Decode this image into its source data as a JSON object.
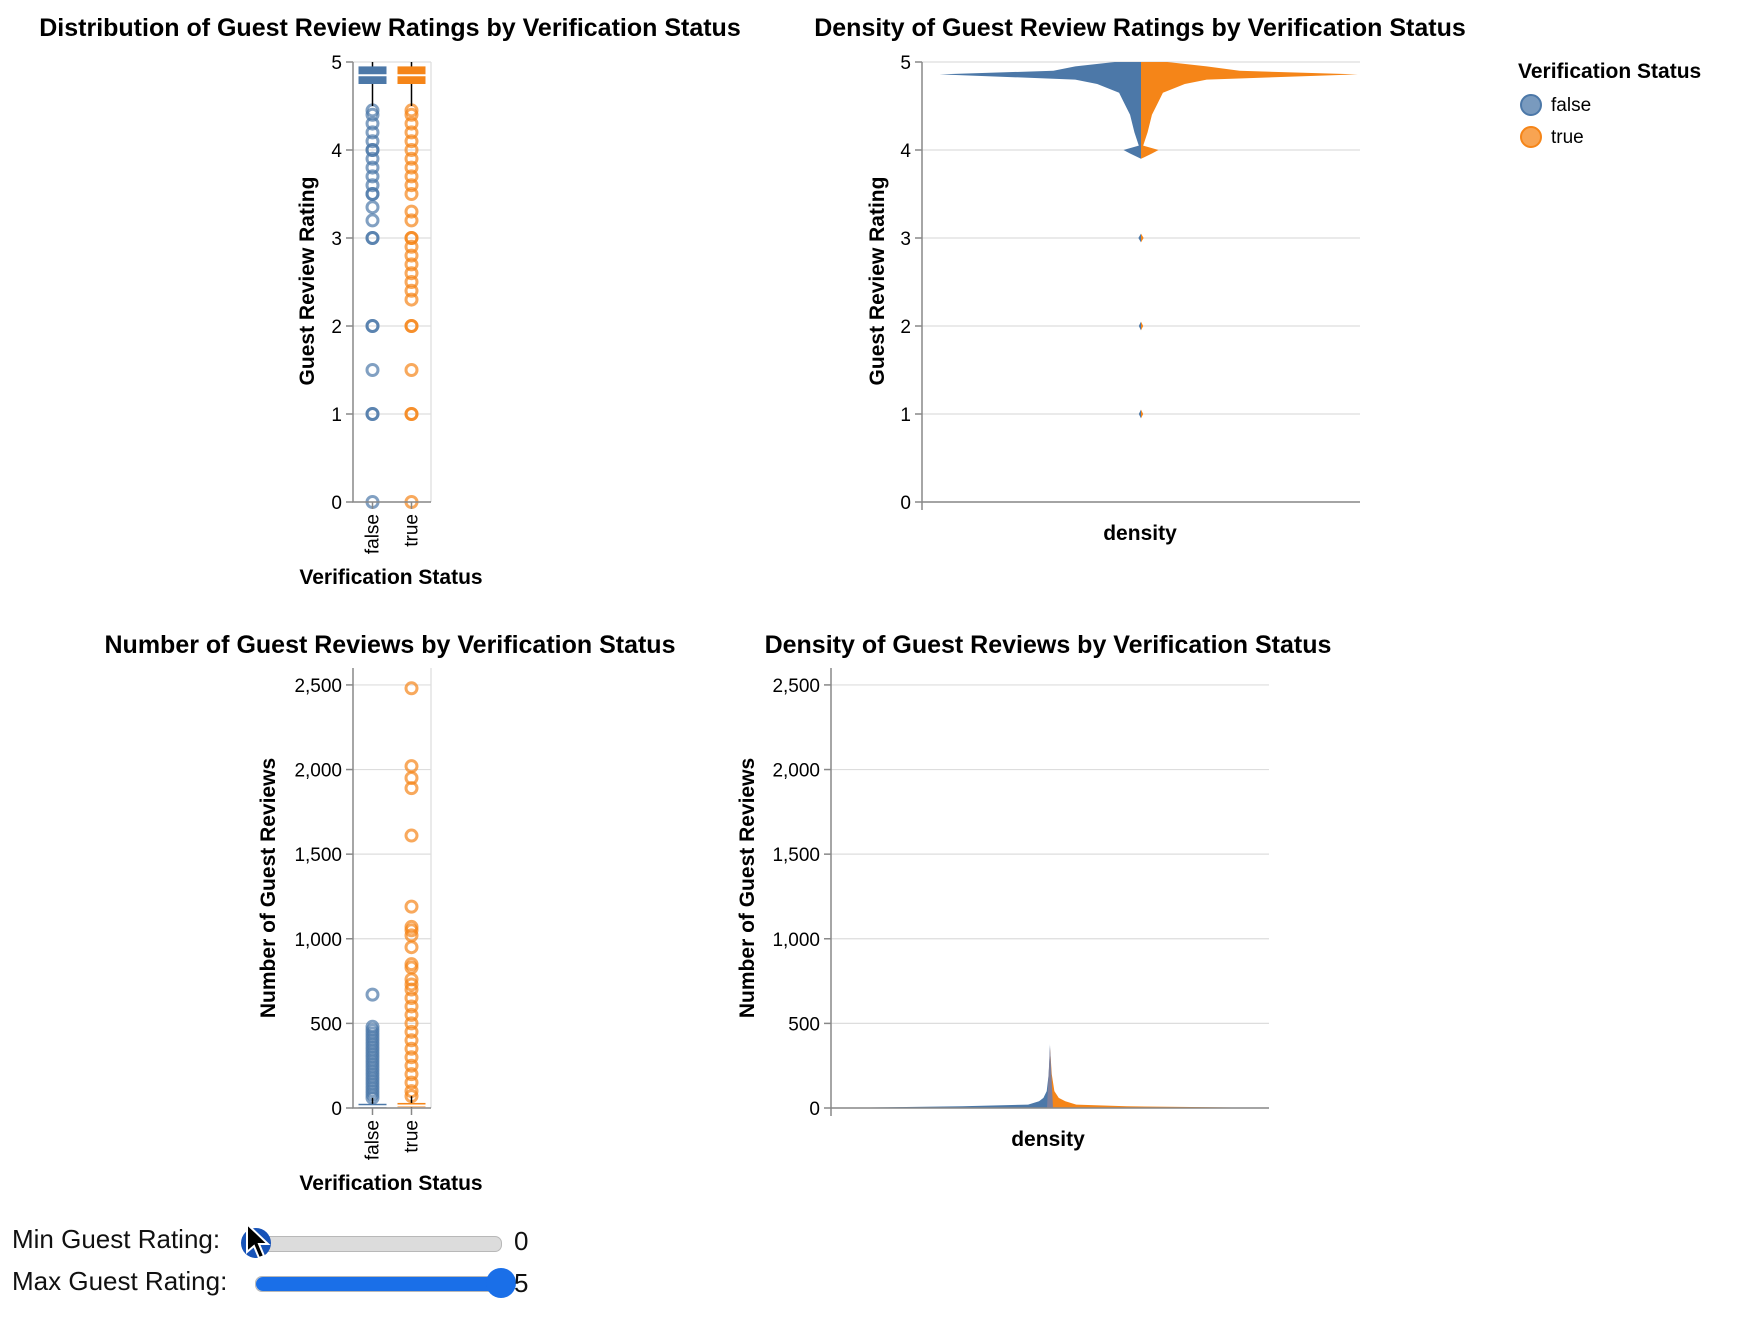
{
  "colors": {
    "false": "#4c78a8",
    "true": "#f58518"
  },
  "legend": {
    "title": "Verification Status",
    "items": [
      "false",
      "true"
    ]
  },
  "controls": {
    "min": {
      "label": "Min Guest Rating:",
      "value": "0",
      "fraction": 0.0
    },
    "max": {
      "label": "Max Guest Rating:",
      "value": "5",
      "fraction": 1.0
    }
  },
  "chart_data": [
    {
      "type": "boxplot",
      "title": "Distribution of Guest Review Ratings by Verification Status",
      "xlabel": "Verification Status",
      "ylabel": "Guest Review Rating",
      "categories": [
        "false",
        "true"
      ],
      "ylim": [
        0,
        5
      ],
      "yticks": [
        0,
        1,
        2,
        3,
        4,
        5
      ],
      "grid": true,
      "boxes": [
        {
          "name": "false",
          "q1": 4.75,
          "median": 4.85,
          "q3": 4.95,
          "whisker_low": 4.5,
          "whisker_high": 5
        },
        {
          "name": "true",
          "q1": 4.75,
          "median": 4.85,
          "q3": 4.95,
          "whisker_low": 4.5,
          "whisker_high": 5
        }
      ],
      "outliers": {
        "false": [
          0,
          1,
          1,
          1.5,
          2,
          2,
          3,
          3,
          3.2,
          3.35,
          3.5,
          3.5,
          3.6,
          3.7,
          3.8,
          3.9,
          4.0,
          4.0,
          4.1,
          4.2,
          4.3,
          4.4,
          4.45
        ],
        "true": [
          0,
          1,
          1,
          1.5,
          2,
          2,
          2.3,
          2.4,
          2.5,
          2.6,
          2.7,
          2.8,
          2.9,
          3,
          3,
          3.2,
          3.3,
          3.5,
          3.6,
          3.7,
          3.8,
          3.9,
          4.0,
          4.1,
          4.2,
          4.3,
          4.4,
          4.45
        ]
      }
    },
    {
      "type": "violin",
      "title": "Density of Guest Review Ratings by Verification Status",
      "xlabel": "density",
      "ylabel": "Guest Review Rating",
      "ylim": [
        0,
        5
      ],
      "yticks": [
        0,
        1,
        2,
        3,
        4,
        5
      ],
      "grid": true,
      "legend_position": "top-right",
      "series": [
        {
          "name": "false",
          "y": [
            0.95,
            1.0,
            1.05,
            1.95,
            2.0,
            2.05,
            2.95,
            3.0,
            3.05,
            3.9,
            3.96,
            4.0,
            4.05,
            4.2,
            4.4,
            4.55,
            4.65,
            4.75,
            4.8,
            4.86,
            4.9,
            4.95,
            5.0
          ],
          "density": [
            0,
            0.01,
            0,
            0,
            0.01,
            0,
            0,
            0.012,
            0,
            0,
            0.05,
            0.08,
            0.01,
            0.03,
            0.05,
            0.08,
            0.1,
            0.2,
            0.3,
            0.92,
            0.4,
            0.3,
            0.12
          ]
        },
        {
          "name": "true",
          "y": [
            0.95,
            1.0,
            1.05,
            1.95,
            2.0,
            2.05,
            2.95,
            3.0,
            3.05,
            3.9,
            3.96,
            4.0,
            4.05,
            4.2,
            4.4,
            4.55,
            4.65,
            4.75,
            4.8,
            4.86,
            4.9,
            4.95,
            5.0
          ],
          "density": [
            0,
            0.01,
            0,
            0,
            0.01,
            0,
            0,
            0.012,
            0,
            0,
            0.05,
            0.08,
            0.01,
            0.03,
            0.05,
            0.08,
            0.1,
            0.2,
            0.3,
            0.99,
            0.45,
            0.3,
            0.12
          ]
        }
      ]
    },
    {
      "type": "boxplot",
      "title": "Number of Guest Reviews by Verification Status",
      "xlabel": "Verification Status",
      "ylabel": "Number of Guest Reviews",
      "categories": [
        "false",
        "true"
      ],
      "ylim": [
        0,
        2600
      ],
      "yticks": [
        0,
        500,
        1000,
        1500,
        2000,
        2500
      ],
      "grid": true,
      "boxes": [
        {
          "name": "false",
          "q1": 3,
          "median": 10,
          "q3": 25,
          "whisker_low": 0,
          "whisker_high": 60
        },
        {
          "name": "true",
          "q1": 5,
          "median": 15,
          "q3": 30,
          "whisker_low": 0,
          "whisker_high": 70
        }
      ],
      "outliers": {
        "false": [
          60,
          80,
          100,
          120,
          140,
          160,
          180,
          200,
          220,
          240,
          260,
          280,
          300,
          320,
          340,
          360,
          380,
          400,
          420,
          440,
          460,
          480,
          670
        ],
        "true": [
          70,
          100,
          150,
          200,
          250,
          300,
          350,
          400,
          450,
          500,
          550,
          600,
          650,
          700,
          730,
          760,
          830,
          850,
          950,
          1020,
          1050,
          1070,
          1190,
          1610,
          1890,
          1950,
          2020,
          2480
        ]
      }
    },
    {
      "type": "violin",
      "title": "Density of Guest Reviews by Verification Status",
      "xlabel": "density",
      "ylabel": "Number of Guest Reviews",
      "ylim": [
        0,
        2600
      ],
      "yticks": [
        0,
        500,
        1000,
        1500,
        2000,
        2500
      ],
      "grid": true,
      "series": [
        {
          "name": "false",
          "y": [
            0,
            5,
            10,
            20,
            40,
            60,
            100,
            200,
            300,
            380
          ],
          "density": [
            1.0,
            0.7,
            0.4,
            0.1,
            0.05,
            0.03,
            0.015,
            0.006,
            0.002,
            0
          ]
        },
        {
          "name": "true",
          "y": [
            0,
            5,
            10,
            20,
            40,
            60,
            100,
            200,
            300,
            350
          ],
          "density": [
            1.0,
            0.7,
            0.35,
            0.12,
            0.07,
            0.04,
            0.02,
            0.008,
            0.003,
            0
          ]
        }
      ]
    }
  ]
}
